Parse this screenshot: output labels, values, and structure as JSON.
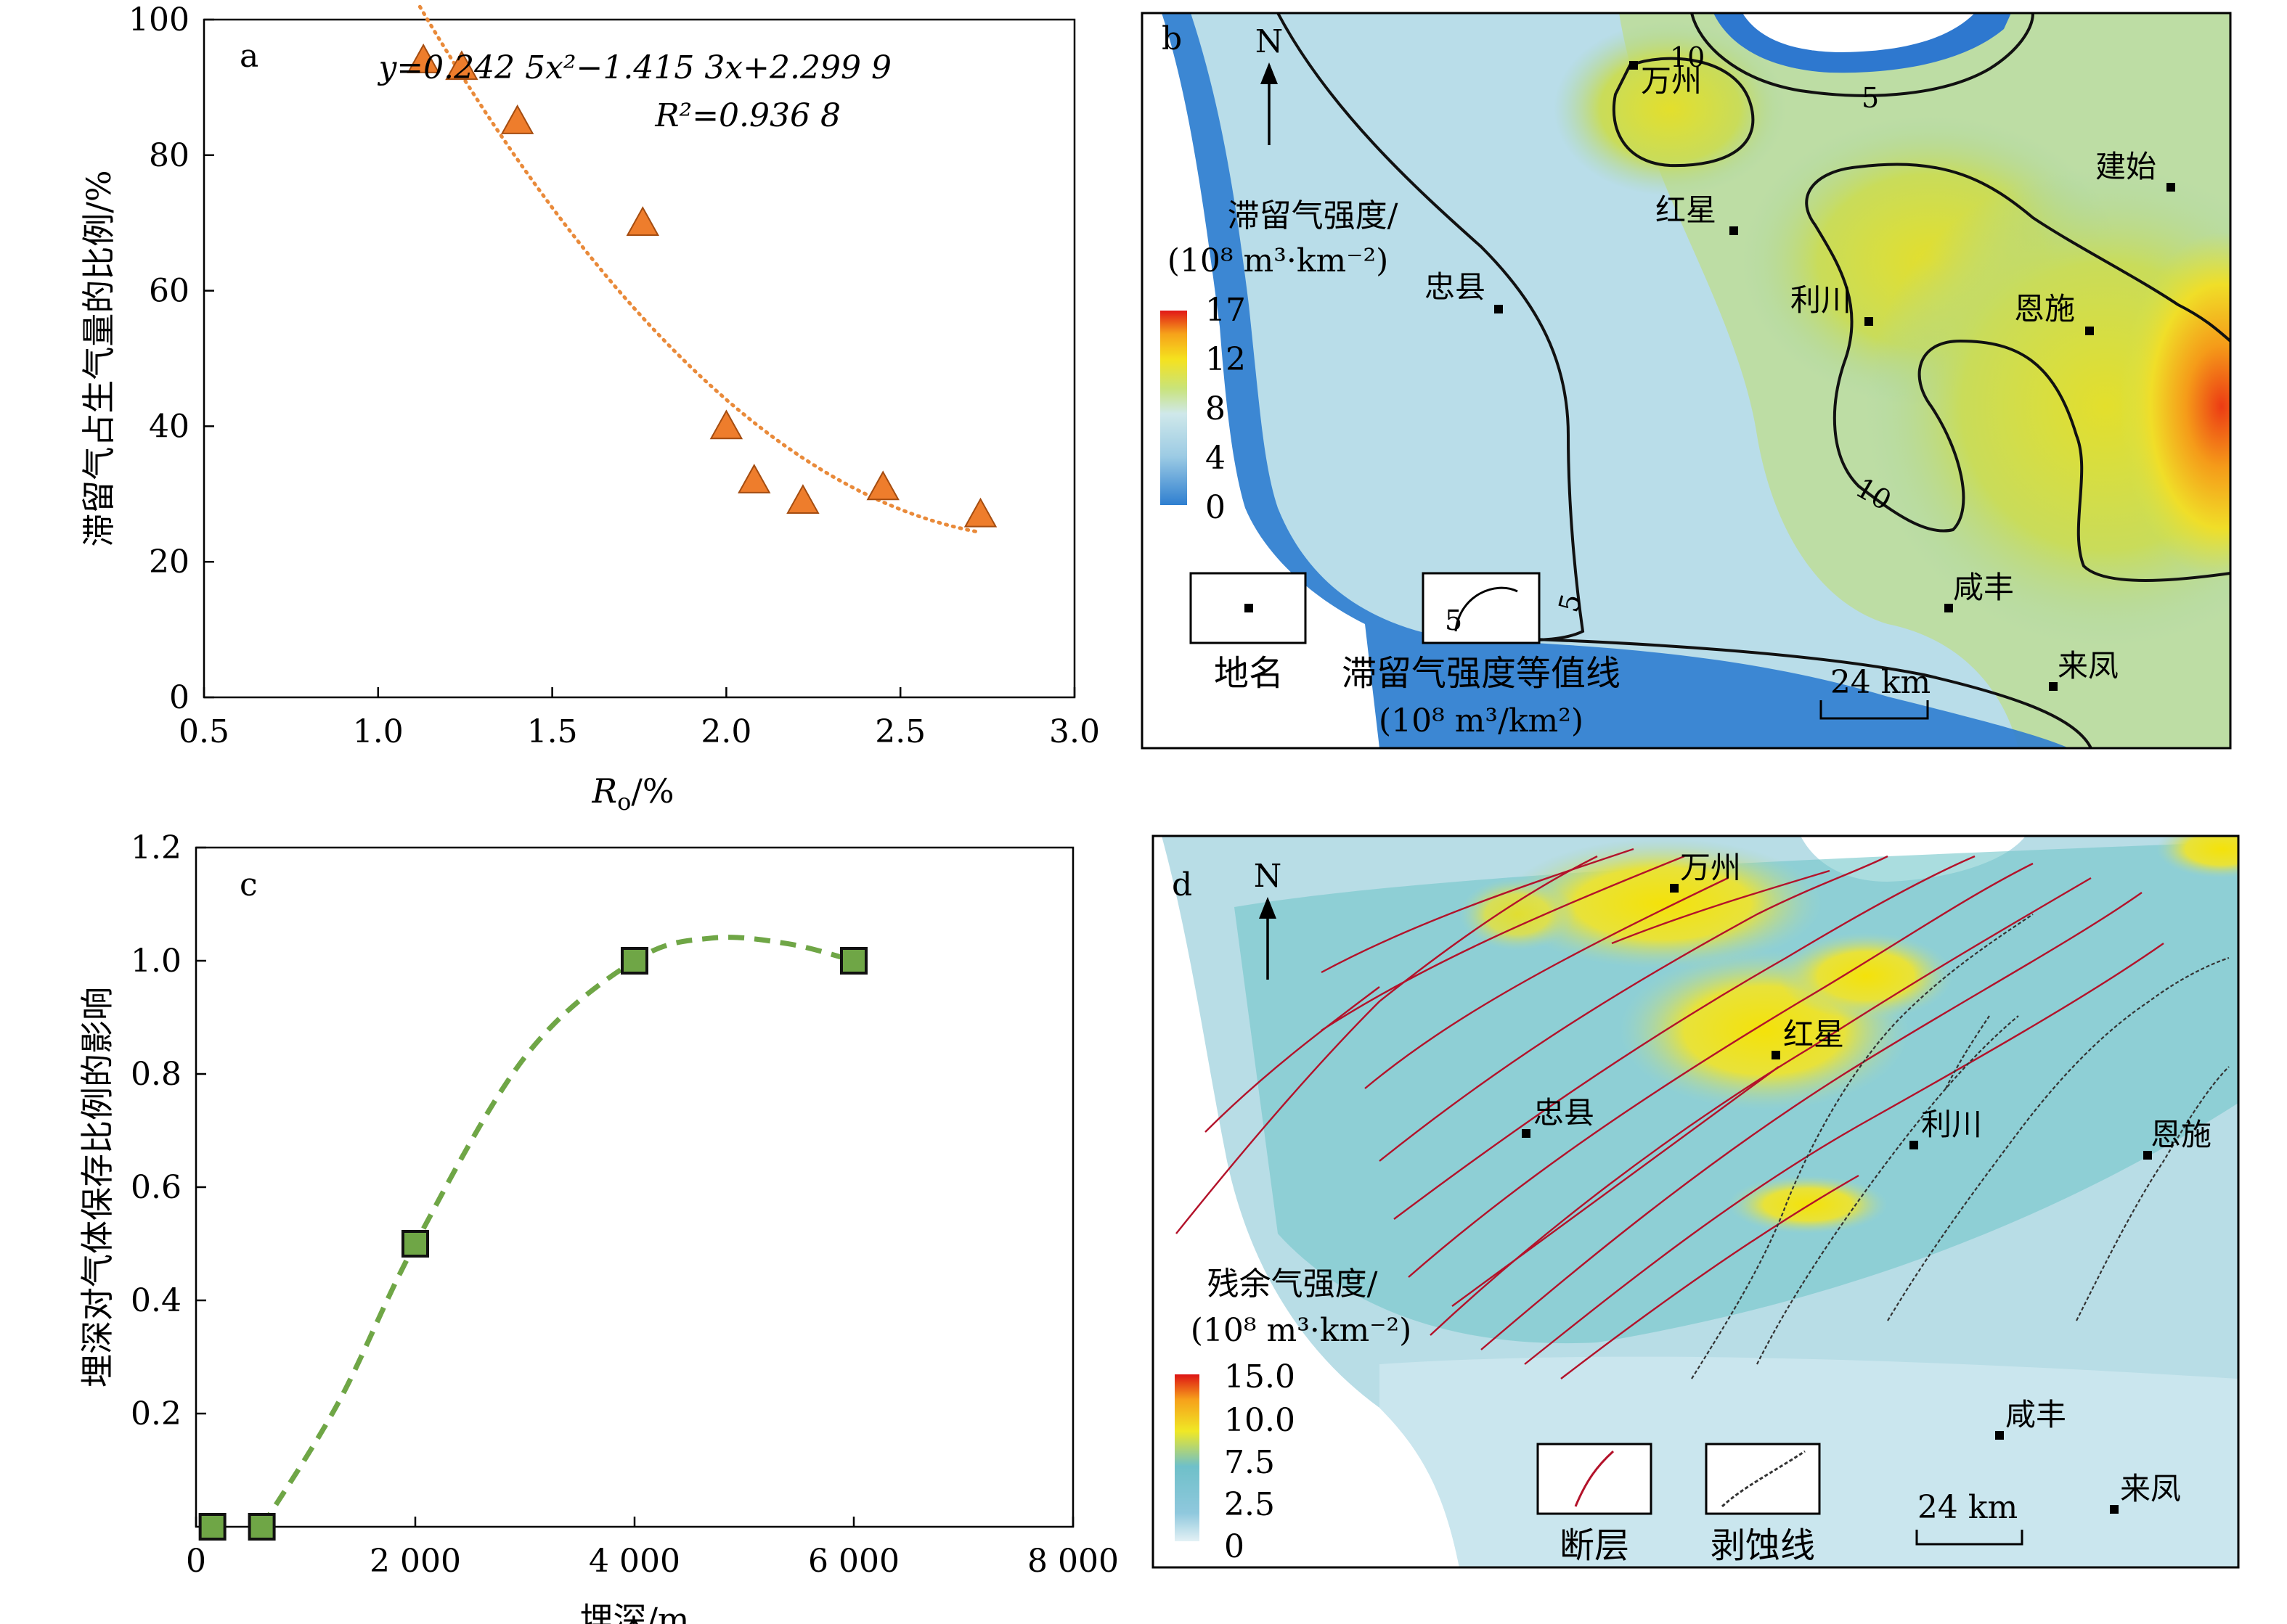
{
  "chart_data": [
    {
      "panel": "a",
      "type": "scatter",
      "xlabel": "R",
      "xlabel_sub": "o",
      "xlabel_suffix": "/%",
      "ylabel": "滞留气占生气量的比例/%",
      "xlim": [
        0.5,
        3.0
      ],
      "ylim": [
        0,
        100
      ],
      "xticks": [
        "0.5",
        "1.0",
        "1.5",
        "2.0",
        "2.5",
        "3.0"
      ],
      "yticks": [
        "0",
        "20",
        "40",
        "60",
        "80",
        "100"
      ],
      "points": [
        {
          "x": 1.13,
          "y": 94
        },
        {
          "x": 1.24,
          "y": 93
        },
        {
          "x": 1.4,
          "y": 85
        },
        {
          "x": 1.76,
          "y": 70
        },
        {
          "x": 2.0,
          "y": 40
        },
        {
          "x": 2.08,
          "y": 32
        },
        {
          "x": 2.22,
          "y": 29
        },
        {
          "x": 2.45,
          "y": 31
        },
        {
          "x": 2.73,
          "y": 27
        }
      ],
      "marker": "triangle",
      "marker_color": "#ee7d2c",
      "fit": {
        "label_line1": "y=0.242 5x²−1.415 3x+2.299 9",
        "label_line2": "R²=0.936 8",
        "a": 0.2425,
        "b": -1.4153,
        "c": 2.2999,
        "scale": 100,
        "x_from": 1.12,
        "x_to": 2.73,
        "color": "#e98a3a"
      }
    },
    {
      "panel": "c",
      "type": "scatter",
      "xlabel": "埋深/m",
      "ylabel": "埋深对气体保存比例的影响",
      "xlim": [
        0,
        8000
      ],
      "ylim": [
        0,
        1.2
      ],
      "xticks": [
        "0",
        "2 000",
        "4 000",
        "6 000",
        "8 000"
      ],
      "yticks": [
        "0.2",
        "0.4",
        "0.6",
        "0.8",
        "1.0",
        "1.2"
      ],
      "points": [
        {
          "x": 150,
          "y": 0.0
        },
        {
          "x": 600,
          "y": 0.0
        },
        {
          "x": 2000,
          "y": 0.5
        },
        {
          "x": 4000,
          "y": 1.0
        },
        {
          "x": 6000,
          "y": 1.0
        }
      ],
      "marker": "square",
      "marker_color": "#6fa646",
      "trend": [
        {
          "x": 600,
          "y": 0.0
        },
        {
          "x": 1300,
          "y": 0.22
        },
        {
          "x": 2000,
          "y": 0.5
        },
        {
          "x": 3000,
          "y": 0.83
        },
        {
          "x": 4000,
          "y": 1.0
        },
        {
          "x": 4700,
          "y": 1.04
        },
        {
          "x": 5400,
          "y": 1.03
        },
        {
          "x": 6000,
          "y": 1.0
        }
      ],
      "trend_color": "#6fa646"
    }
  ],
  "map_b": {
    "panel": "b",
    "north": "N",
    "legend_title_line1": "滞留气强度/",
    "legend_title_line2": "(10⁸ m³·km⁻²)",
    "legend_ticks": [
      "17",
      "12",
      "8",
      "4",
      "0"
    ],
    "contour_labels": [
      "10",
      "5",
      "10",
      "5",
      "5"
    ],
    "places": [
      "万州",
      "建始",
      "红星",
      "忠县",
      "利川",
      "恩施",
      "咸丰",
      "来凤"
    ],
    "key_place": "地名",
    "key_contour_line1": "滞留气强度等值线",
    "key_contour_line2": "(10⁸ m³/km²)",
    "key_contour_value": "5",
    "scale": "24 km"
  },
  "map_d": {
    "panel": "d",
    "north": "N",
    "legend_title_line1": "残余气强度/",
    "legend_title_line2": "(10⁸ m³·km⁻²)",
    "legend_ticks": [
      "15.0",
      "10.0",
      "7.5",
      "2.5",
      "0"
    ],
    "places": [
      "万州",
      "红星",
      "忠县",
      "利川",
      "恩施",
      "咸丰",
      "来凤"
    ],
    "key_fault": "断层",
    "key_erosion": "剥蚀线",
    "scale": "24 km"
  }
}
